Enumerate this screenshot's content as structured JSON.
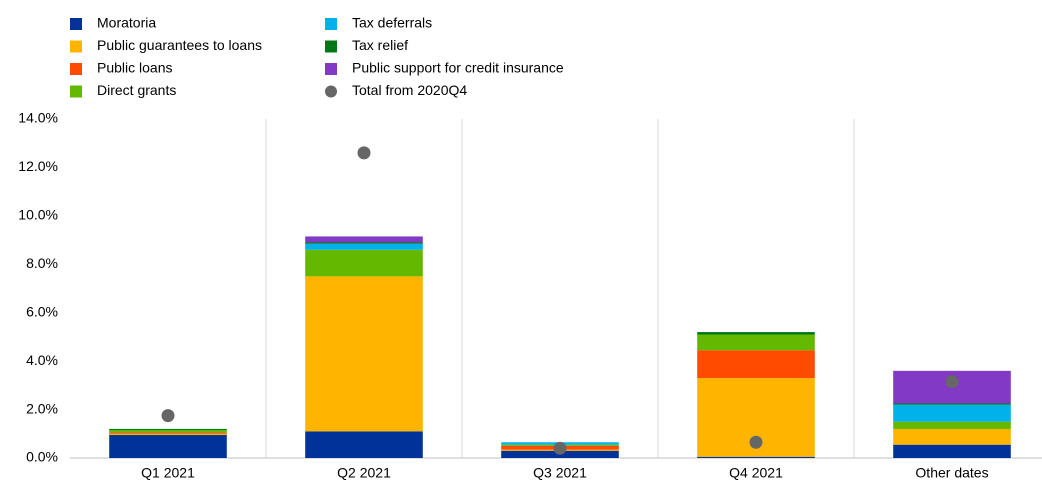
{
  "chart_data": {
    "type": "bar",
    "stacked": true,
    "categories": [
      "Q1 2021",
      "Q2 2021",
      "Q3 2021",
      "Q4 2021",
      "Other dates"
    ],
    "series": [
      {
        "name": "Moratoria",
        "color": "#003299",
        "values": [
          0.95,
          1.1,
          0.3,
          0.05,
          0.55
        ]
      },
      {
        "name": "Public guarantees to loans",
        "color": "#ffb400",
        "values": [
          0.05,
          6.4,
          0.05,
          3.25,
          0.65
        ]
      },
      {
        "name": "Public loans",
        "color": "#ff4b00",
        "values": [
          0.05,
          0,
          0.15,
          1.15,
          0
        ]
      },
      {
        "name": "Direct grants",
        "color": "#65b800",
        "values": [
          0.1,
          1.1,
          0.05,
          0.65,
          0.3
        ]
      },
      {
        "name": "Tax deferrals",
        "color": "#00b1ea",
        "values": [
          0,
          0.25,
          0.1,
          0,
          0.7
        ]
      },
      {
        "name": "Tax relief",
        "color": "#007816",
        "values": [
          0.05,
          0.05,
          0,
          0.1,
          0.05
        ]
      },
      {
        "name": "Public support for credit insurance",
        "color": "#8139c6",
        "values": [
          0,
          0.25,
          0,
          0,
          1.35
        ]
      },
      {
        "name": "Total from 2020Q4",
        "type": "scatter",
        "color": "#666666",
        "values": [
          1.75,
          12.6,
          0.4,
          0.65,
          3.15
        ]
      }
    ],
    "ylim": [
      0,
      14
    ],
    "yticks": [
      {
        "value": 0,
        "label": "0.0%"
      },
      {
        "value": 2,
        "label": "2.0%"
      },
      {
        "value": 4,
        "label": "4.0%"
      },
      {
        "value": 6,
        "label": "6.0%"
      },
      {
        "value": 8,
        "label": "8.0%"
      },
      {
        "value": 10,
        "label": "10.0%"
      },
      {
        "value": 12,
        "label": "12.0%"
      },
      {
        "value": 14,
        "label": "14.0%"
      }
    ],
    "grid": false
  }
}
